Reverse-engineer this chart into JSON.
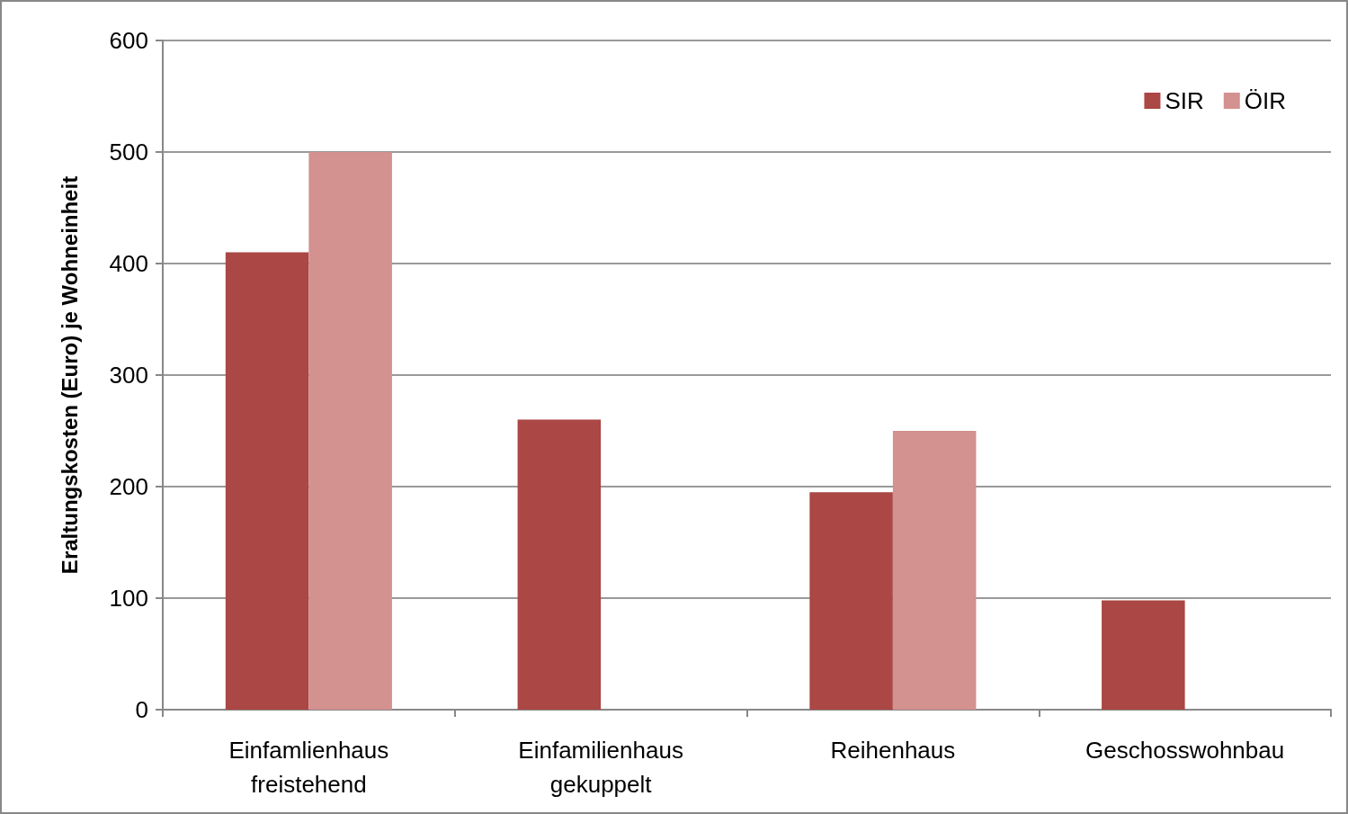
{
  "chart_data": {
    "type": "bar",
    "ylabel": "Eraltungskosten (Euro) je Wohneinheit",
    "categories": [
      "Einfamlienhaus\nfreistehend",
      "Einfamilienhaus\ngekuppelt",
      "Reihenhaus",
      "Geschosswohnbau"
    ],
    "series": [
      {
        "name": "SIR",
        "color": "#ab4744",
        "values": [
          410,
          260,
          195,
          98
        ]
      },
      {
        "name": "ÖIR",
        "color": "#d39190",
        "values": [
          500,
          null,
          250,
          null
        ]
      }
    ],
    "ylim": [
      0,
      600
    ],
    "yticks": [
      0,
      100,
      200,
      300,
      400,
      500,
      600
    ],
    "grid": "y",
    "legend": "top right"
  }
}
